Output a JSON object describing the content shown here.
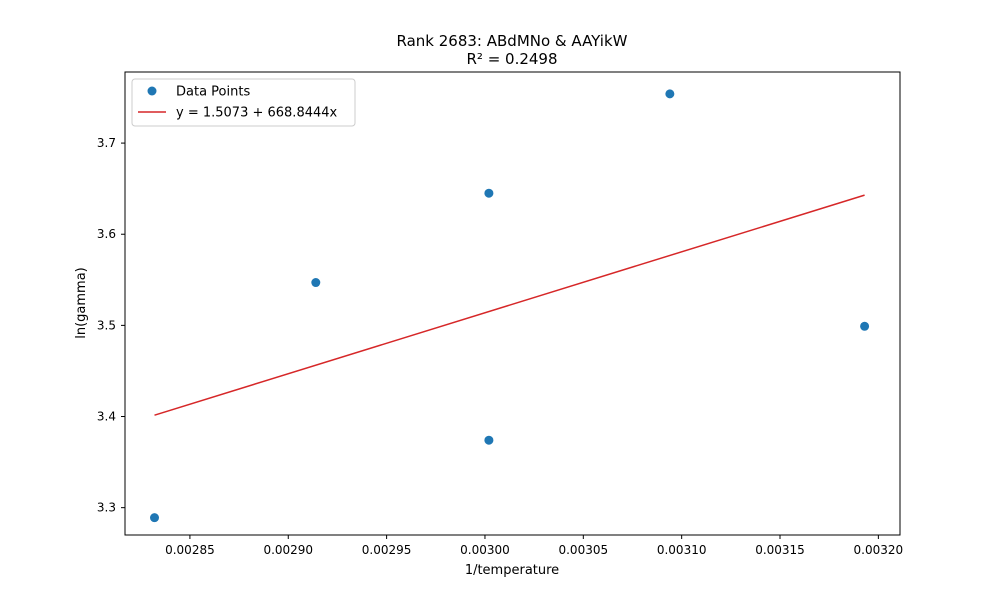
{
  "chart_data": {
    "type": "scatter",
    "title": "Rank 2683: ABdMNo & AAYikW",
    "subtitle": "R² = 0.2498",
    "xlabel": "1/temperature",
    "ylabel": "ln(gamma)",
    "xlim": [
      0.002817,
      0.003211
    ],
    "ylim": [
      3.27,
      3.778
    ],
    "x_ticks": [
      0.00285,
      0.0029,
      0.00295,
      0.003,
      0.00305,
      0.0031,
      0.00315,
      0.0032
    ],
    "x_tick_labels": [
      "0.00285",
      "0.00290",
      "0.00295",
      "0.00300",
      "0.00305",
      "0.00310",
      "0.00315",
      "0.00320"
    ],
    "y_ticks": [
      3.3,
      3.4,
      3.5,
      3.6,
      3.7
    ],
    "y_tick_labels": [
      "3.3",
      "3.4",
      "3.5",
      "3.6",
      "3.7"
    ],
    "grid": false,
    "legend_position": "top-left",
    "series": [
      {
        "name": "Data Points",
        "kind": "scatter",
        "color": "#1f77b4",
        "x": [
          0.002832,
          0.002914,
          0.003002,
          0.003002,
          0.003094,
          0.003193
        ],
        "y": [
          3.289,
          3.547,
          3.374,
          3.645,
          3.754,
          3.499
        ]
      },
      {
        "name": "y = 1.5073 + 668.8444x",
        "kind": "line",
        "color": "#d62728",
        "intercept": 1.5073,
        "slope": 668.8444,
        "x_range": [
          0.002832,
          0.003193
        ]
      }
    ]
  }
}
